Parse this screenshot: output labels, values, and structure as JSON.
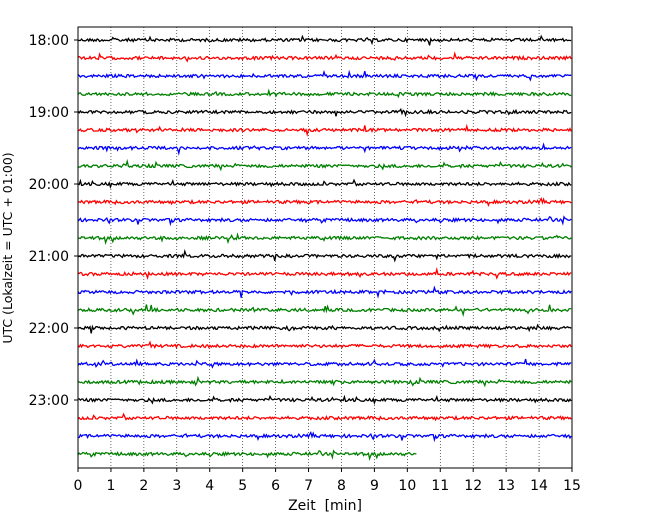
{
  "chart_data": {
    "type": "line",
    "title": "",
    "xlabel": "Zeit  [min]",
    "ylabel": "UTC (Lokalzeit = UTC + 01:00)",
    "xlim": [
      0,
      15
    ],
    "x_ticks": [
      "0",
      "1",
      "2",
      "3",
      "4",
      "5",
      "6",
      "7",
      "8",
      "9",
      "10",
      "11",
      "12",
      "13",
      "14",
      "15"
    ],
    "y_ticks": [
      "18:00",
      "19:00",
      "20:00",
      "21:00",
      "22:00",
      "23:00"
    ],
    "grid": "vertical dotted at each minute",
    "trace_colors": [
      "#000000",
      "#ff0000",
      "#0000ff",
      "#008000"
    ],
    "rows": [
      {
        "start": "18:00",
        "end_min": 15
      },
      {
        "start": "18:15",
        "end_min": 15
      },
      {
        "start": "18:30",
        "end_min": 15
      },
      {
        "start": "18:45",
        "end_min": 15
      },
      {
        "start": "19:00",
        "end_min": 15
      },
      {
        "start": "19:15",
        "end_min": 15
      },
      {
        "start": "19:30",
        "end_min": 15
      },
      {
        "start": "19:45",
        "end_min": 15
      },
      {
        "start": "20:00",
        "end_min": 15
      },
      {
        "start": "20:15",
        "end_min": 15
      },
      {
        "start": "20:30",
        "end_min": 15
      },
      {
        "start": "20:45",
        "end_min": 15
      },
      {
        "start": "21:00",
        "end_min": 15
      },
      {
        "start": "21:15",
        "end_min": 15
      },
      {
        "start": "21:30",
        "end_min": 15
      },
      {
        "start": "21:45",
        "end_min": 15
      },
      {
        "start": "22:00",
        "end_min": 15
      },
      {
        "start": "22:15",
        "end_min": 15
      },
      {
        "start": "22:30",
        "end_min": 15
      },
      {
        "start": "22:45",
        "end_min": 15
      },
      {
        "start": "23:00",
        "end_min": 15
      },
      {
        "start": "23:15",
        "end_min": 15
      },
      {
        "start": "23:30",
        "end_min": 15
      },
      {
        "start": "23:45",
        "end_min": 10.3
      }
    ]
  }
}
